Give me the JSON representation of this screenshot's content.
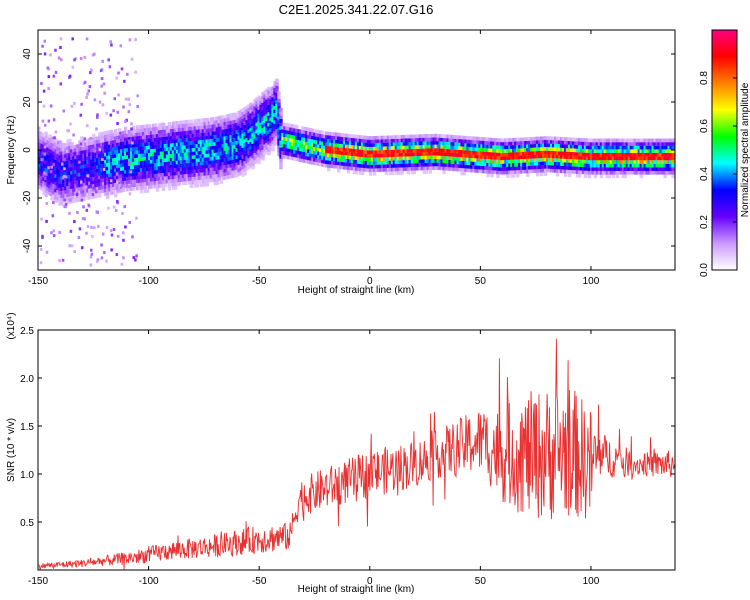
{
  "chart_data": [
    {
      "type": "heatmap",
      "title": "C2E1.2025.341.22.07.G16",
      "xlabel": "Height of straight line (km)",
      "ylabel": "Frequency (Hz)",
      "xlim": [
        -150,
        138
      ],
      "ylim": [
        -50,
        50
      ],
      "x_ticks": [
        -150,
        -100,
        -50,
        0,
        50,
        100
      ],
      "y_ticks": [
        -40,
        -20,
        0,
        20,
        40
      ],
      "colorbar": {
        "label": "Normalized spectral amplitude",
        "range": [
          0,
          1
        ],
        "ticks": [
          "0.0",
          "0.2",
          "0.4",
          "0.6",
          "0.8"
        ],
        "tick_values": [
          0.0,
          0.2,
          0.4,
          0.6,
          0.8
        ],
        "stops": [
          "#ffffff",
          "#cc99ff",
          "#6600ff",
          "#0000ff",
          "#00ffff",
          "#00ff00",
          "#ffff00",
          "#ff8000",
          "#ff0000",
          "#ff0080"
        ]
      },
      "ridge": [
        {
          "x": -150,
          "y": -4
        },
        {
          "x": -140,
          "y": -10
        },
        {
          "x": -125,
          "y": -7
        },
        {
          "x": -110,
          "y": -4
        },
        {
          "x": -90,
          "y": -2
        },
        {
          "x": -70,
          "y": 0
        },
        {
          "x": -60,
          "y": 2
        },
        {
          "x": -55,
          "y": 5
        },
        {
          "x": -50,
          "y": 9
        },
        {
          "x": -45,
          "y": 13
        },
        {
          "x": -42,
          "y": 16
        },
        {
          "x": -40,
          "y": 4
        },
        {
          "x": -30,
          "y": 2
        },
        {
          "x": -20,
          "y": 0
        },
        {
          "x": 0,
          "y": -2
        },
        {
          "x": 30,
          "y": -1
        },
        {
          "x": 60,
          "y": -3
        },
        {
          "x": 80,
          "y": -2
        },
        {
          "x": 100,
          "y": -3
        },
        {
          "x": 138,
          "y": -3
        }
      ]
    },
    {
      "type": "line",
      "xlabel": "Height of straight line (km)",
      "ylabel": "SNR (10 * v/v)",
      "scale_label": "(x10⁴)",
      "xlim": [
        -150,
        138
      ],
      "ylim": [
        0,
        2.5
      ],
      "x_ticks": [
        -150,
        -100,
        -50,
        0,
        50,
        100
      ],
      "y_ticks": [
        0.5,
        1.0,
        1.5,
        2.0,
        2.5
      ],
      "y_tick_labels": [
        "0.5",
        "1.0",
        "1.5",
        "2.0",
        "2.5"
      ],
      "series_color": "#e83030",
      "envelope": [
        {
          "x": -150,
          "mean": 0.04,
          "amp": 0.03
        },
        {
          "x": -130,
          "mean": 0.07,
          "amp": 0.04
        },
        {
          "x": -110,
          "mean": 0.12,
          "amp": 0.07
        },
        {
          "x": -90,
          "mean": 0.2,
          "amp": 0.1
        },
        {
          "x": -70,
          "mean": 0.25,
          "amp": 0.12
        },
        {
          "x": -50,
          "mean": 0.32,
          "amp": 0.15
        },
        {
          "x": -36,
          "mean": 0.35,
          "amp": 0.15
        },
        {
          "x": -32,
          "mean": 0.75,
          "amp": 0.2
        },
        {
          "x": -20,
          "mean": 0.85,
          "amp": 0.22
        },
        {
          "x": 0,
          "mean": 1.0,
          "amp": 0.25
        },
        {
          "x": 20,
          "mean": 1.1,
          "amp": 0.25
        },
        {
          "x": 30,
          "mean": 1.2,
          "amp": 0.25
        },
        {
          "x": 50,
          "mean": 1.35,
          "amp": 0.35
        },
        {
          "x": 60,
          "mean": 1.2,
          "amp": 0.5
        },
        {
          "x": 70,
          "mean": 1.2,
          "amp": 0.65
        },
        {
          "x": 80,
          "mean": 1.2,
          "amp": 0.7
        },
        {
          "x": 90,
          "mean": 1.25,
          "amp": 0.7
        },
        {
          "x": 100,
          "mean": 1.1,
          "amp": 0.6
        },
        {
          "x": 104,
          "mean": 1.2,
          "amp": 0.25
        },
        {
          "x": 120,
          "mean": 1.1,
          "amp": 0.12
        },
        {
          "x": 138,
          "mean": 1.1,
          "amp": 0.15
        }
      ]
    }
  ]
}
